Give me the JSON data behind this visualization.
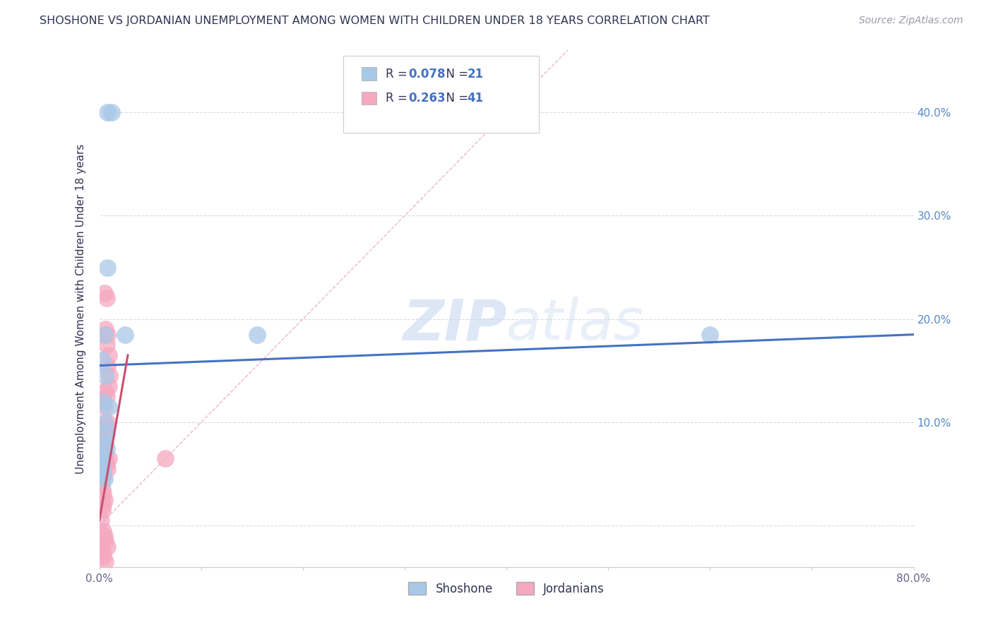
{
  "title": "SHOSHONE VS JORDANIAN UNEMPLOYMENT AMONG WOMEN WITH CHILDREN UNDER 18 YEARS CORRELATION CHART",
  "source": "Source: ZipAtlas.com",
  "ylabel": "Unemployment Among Women with Children Under 18 years",
  "xlim": [
    0.0,
    0.8
  ],
  "ylim": [
    -0.04,
    0.46
  ],
  "yticks": [
    0.0,
    0.1,
    0.2,
    0.3,
    0.4
  ],
  "xticks": [
    0.0,
    0.1,
    0.2,
    0.3,
    0.4,
    0.5,
    0.6,
    0.7,
    0.8
  ],
  "shoshone_R": 0.078,
  "shoshone_N": 21,
  "jordanian_R": 0.263,
  "jordanian_N": 41,
  "shoshone_color": "#a8c8e8",
  "jordanian_color": "#f5a8c0",
  "shoshone_line_color": "#4472c4",
  "jordanian_line_color": "#c85070",
  "diagonal_color": "#e8b0c0",
  "background_color": "#ffffff",
  "grid_color": "#d0d8e8",
  "legend_text_color": "#4472c4",
  "right_axis_color": "#5588cc",
  "shoshone_x": [
    0.008,
    0.012,
    0.008,
    0.005,
    0.003,
    0.006,
    0.004,
    0.009,
    0.007,
    0.005,
    0.006,
    0.007,
    0.003,
    0.004,
    0.002,
    0.003,
    0.005,
    0.155,
    0.6,
    0.003,
    0.025
  ],
  "shoshone_y": [
    0.4,
    0.4,
    0.25,
    0.185,
    0.16,
    0.145,
    0.12,
    0.115,
    0.09,
    0.1,
    0.08,
    0.075,
    0.065,
    0.055,
    0.06,
    0.05,
    0.045,
    0.185,
    0.185,
    0.065,
    0.185
  ],
  "jordanian_x": [
    0.005,
    0.007,
    0.006,
    0.008,
    0.007,
    0.009,
    0.008,
    0.01,
    0.009,
    0.006,
    0.007,
    0.004,
    0.005,
    0.008,
    0.007,
    0.006,
    0.003,
    0.003,
    0.004,
    0.005,
    0.006,
    0.007,
    0.008,
    0.009,
    0.004,
    0.003,
    0.002,
    0.003,
    0.004,
    0.005,
    0.004,
    0.003,
    0.065,
    0.002,
    0.004,
    0.005,
    0.006,
    0.008,
    0.003,
    0.004,
    0.006
  ],
  "jordanian_y": [
    0.225,
    0.22,
    0.19,
    0.185,
    0.175,
    0.165,
    0.155,
    0.145,
    0.135,
    0.13,
    0.125,
    0.12,
    0.115,
    0.1,
    0.095,
    0.09,
    0.085,
    0.08,
    0.075,
    0.07,
    0.065,
    0.06,
    0.055,
    0.065,
    0.05,
    0.045,
    0.04,
    0.035,
    0.03,
    0.025,
    0.02,
    0.015,
    0.065,
    0.005,
    -0.005,
    -0.01,
    -0.015,
    -0.02,
    -0.025,
    -0.03,
    -0.035
  ],
  "watermark_zip": "ZIP",
  "watermark_atlas": "atlas",
  "watermark_color": "#ccd8ee"
}
